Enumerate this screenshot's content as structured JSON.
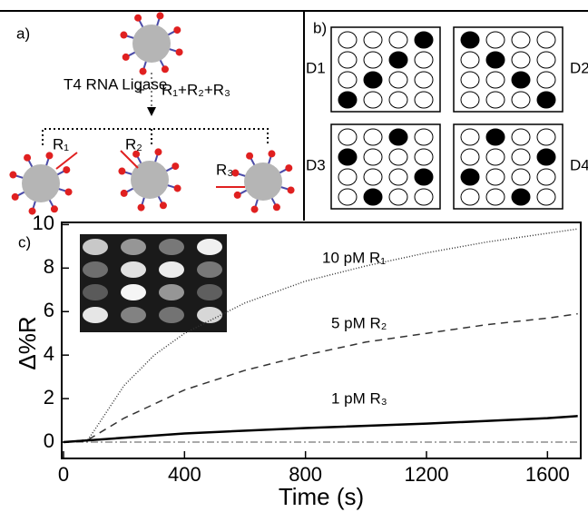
{
  "panel_a": {
    "label": "a)",
    "enzyme": "T4 RNA Ligase",
    "plus": "+",
    "reagents": "R₁+R₂+R₃",
    "strands": [
      "R₁",
      "R₂",
      "R₃"
    ]
  },
  "panel_b": {
    "label": "b)",
    "arrays": [
      {
        "name": "D1",
        "filled_columns": [
          3,
          2,
          1,
          0
        ]
      },
      {
        "name": "D2",
        "filled_columns": [
          0,
          1,
          2,
          3
        ]
      },
      {
        "name": "D3",
        "filled_columns": [
          2,
          0,
          3,
          1
        ]
      },
      {
        "name": "D4",
        "filled_columns": [
          1,
          3,
          0,
          2
        ]
      }
    ]
  },
  "chart_data": {
    "type": "line",
    "panel_label": "c)",
    "x_label": "Time (s)",
    "y_label": "Δ%R",
    "xlim": [
      -6,
      1710
    ],
    "ylim": [
      -0.75,
      10.1
    ],
    "xticks": [
      0,
      400,
      800,
      1200,
      1600
    ],
    "yticks": [
      0,
      2,
      4,
      6,
      8,
      10
    ],
    "reference_line": 0,
    "series": [
      {
        "name": "10 pM R₁",
        "color": "#333333",
        "dash": "1 2",
        "x": [
          0,
          80,
          100,
          200,
          300,
          400,
          600,
          800,
          1000,
          1200,
          1400,
          1600,
          1700
        ],
        "values": [
          0,
          0.1,
          0.5,
          2.6,
          4.0,
          5.0,
          6.4,
          7.4,
          8.1,
          8.7,
          9.2,
          9.6,
          9.8
        ]
      },
      {
        "name": "5 pM R₂",
        "color": "#333333",
        "dash": "8 6",
        "x": [
          0,
          80,
          200,
          400,
          600,
          800,
          1000,
          1200,
          1400,
          1600,
          1700
        ],
        "values": [
          0,
          0.1,
          1.1,
          2.4,
          3.3,
          4.0,
          4.6,
          5.0,
          5.4,
          5.7,
          5.9
        ]
      },
      {
        "name": "1 pM R₃",
        "color": "#000000",
        "dash": "none",
        "x": [
          0,
          100,
          400,
          800,
          1200,
          1600,
          1700
        ],
        "values": [
          0,
          0.1,
          0.4,
          0.65,
          0.85,
          1.1,
          1.2
        ]
      }
    ]
  }
}
